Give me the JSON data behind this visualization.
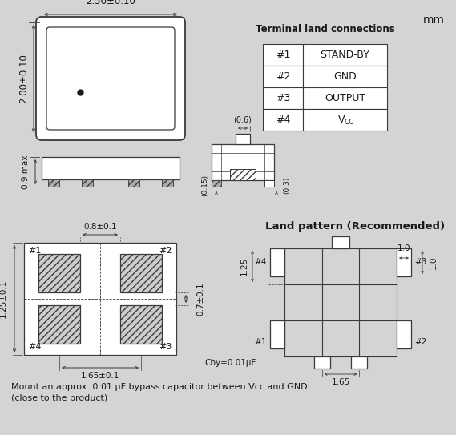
{
  "bg_color": "#d4d4d4",
  "line_color": "#3a3a3a",
  "white": "#ffffff",
  "table_data": [
    [
      "#1",
      "STAND-BY"
    ],
    [
      "#2",
      "GND"
    ],
    [
      "#3",
      "OUTPUT"
    ],
    [
      "#4",
      "VCC"
    ]
  ],
  "bottom_text_1": "Mount an approx. 0.01 μF bypass capacitor between Vcc and GND",
  "bottom_text_2": "(close to the product)",
  "mm_label": "mm",
  "terminal_label": "Terminal land connections",
  "land_label": "Land pattern (Recommended)"
}
